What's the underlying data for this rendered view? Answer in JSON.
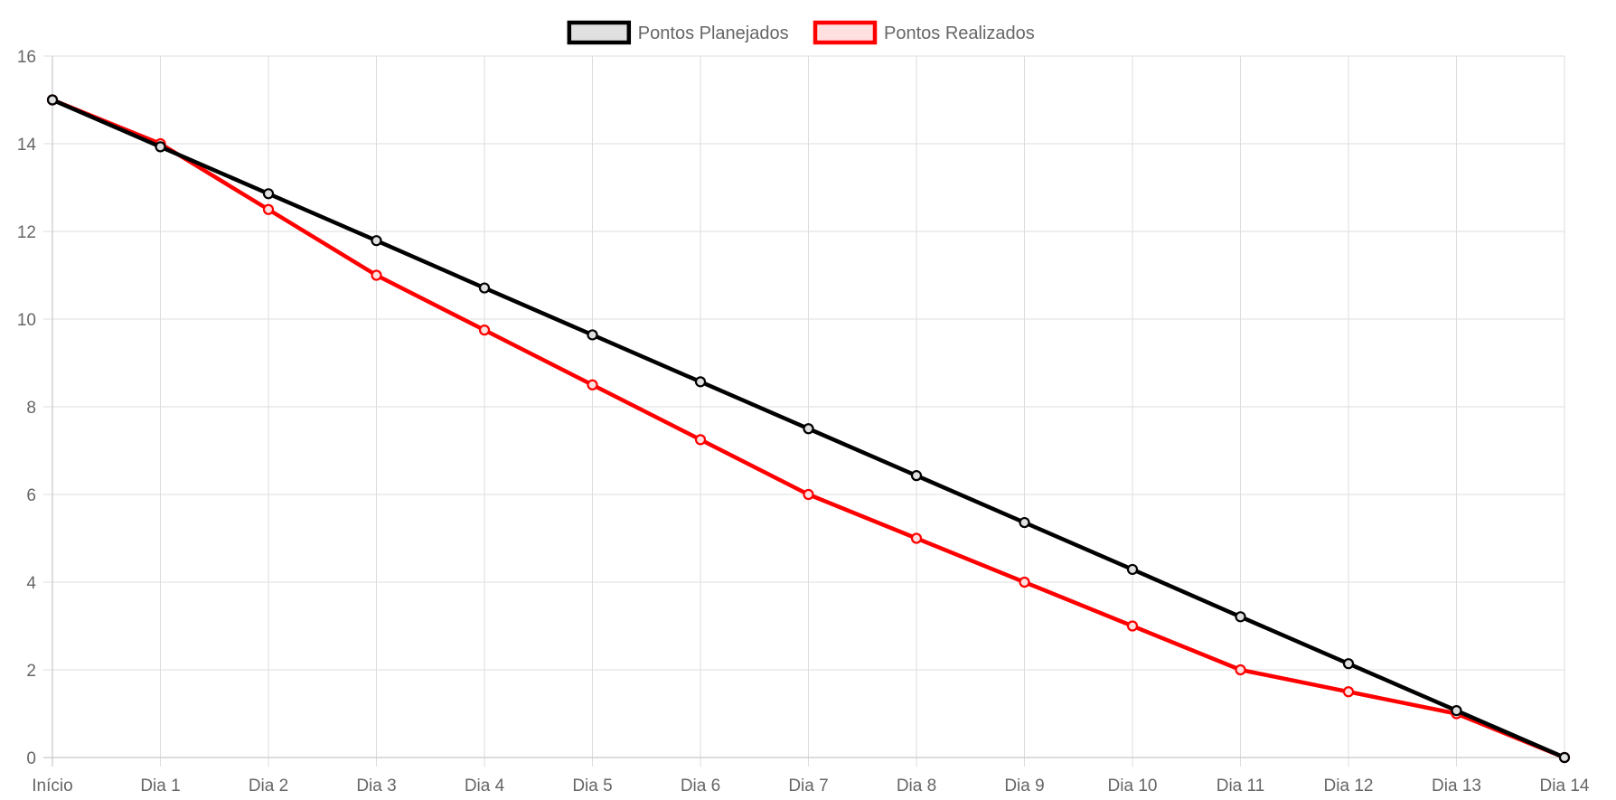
{
  "chart_data": {
    "type": "line",
    "categories": [
      "Início",
      "Dia 1",
      "Dia 2",
      "Dia 3",
      "Dia 4",
      "Dia 5",
      "Dia 6",
      "Dia 7",
      "Dia 8",
      "Dia 9",
      "Dia 10",
      "Dia 11",
      "Dia 12",
      "Dia 13",
      "Dia 14"
    ],
    "series": [
      {
        "name": "Pontos Planejados",
        "color": "#000000",
        "fill": "#e0e0e0",
        "values": [
          15,
          13.93,
          12.86,
          11.79,
          10.71,
          9.64,
          8.57,
          7.5,
          6.43,
          5.36,
          4.29,
          3.21,
          2.14,
          1.07,
          0
        ]
      },
      {
        "name": "Pontos Realizados",
        "color": "#ff0000",
        "fill": "#ffe0e0",
        "values": [
          15,
          14,
          12.5,
          11,
          9.75,
          8.5,
          7.25,
          6,
          5,
          4,
          3,
          2,
          1.5,
          1,
          0
        ]
      }
    ],
    "yticks": [
      0,
      2,
      4,
      6,
      8,
      10,
      12,
      14,
      16
    ],
    "ylim": [
      0,
      16
    ],
    "grid": true,
    "legend": "top-center"
  }
}
